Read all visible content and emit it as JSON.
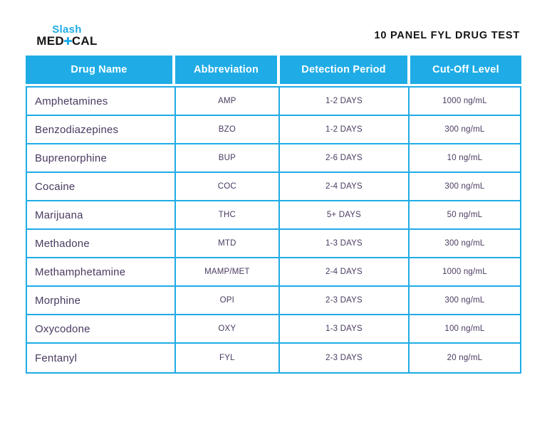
{
  "logo": {
    "top": "Slash",
    "bottom_left": "MED",
    "cross_glyph": "✚",
    "bottom_right": "CAL"
  },
  "header": {
    "title": "10 PANEL FYL DRUG TEST"
  },
  "colors": {
    "accent_cyan": "#1FACE6",
    "text_purple": "#4A3A60",
    "title_ink": "#141414",
    "header_text": "#FFFFFF"
  },
  "table": {
    "columns": [
      "Drug Name",
      "Abbreviation",
      "Detection Period",
      "Cut-Off Level"
    ],
    "rows": [
      [
        "Amphetamines",
        "AMP",
        "1-2 DAYS",
        "1000 ng/mL"
      ],
      [
        "Benzodiazepines",
        "BZO",
        "1-2 DAYS",
        "300 ng/mL"
      ],
      [
        "Buprenorphine",
        "BUP",
        "2-6 DAYS",
        "10 ng/mL"
      ],
      [
        "Cocaine",
        "COC",
        "2-4 DAYS",
        "300 ng/mL"
      ],
      [
        "Marijuana",
        "THC",
        "5+ DAYS",
        "50 ng/mL"
      ],
      [
        "Methadone",
        "MTD",
        "1-3 DAYS",
        "300 ng/mL"
      ],
      [
        "Methamphetamine",
        "MAMP/MET",
        "2-4 DAYS",
        "1000 ng/mL"
      ],
      [
        "Morphine",
        "OPI",
        "2-3 DAYS",
        "300 ng/mL"
      ],
      [
        "Oxycodone",
        "OXY",
        "1-3 DAYS",
        "100 ng/mL"
      ],
      [
        "Fentanyl",
        "FYL",
        "2-3 DAYS",
        "20 ng/mL"
      ]
    ]
  }
}
